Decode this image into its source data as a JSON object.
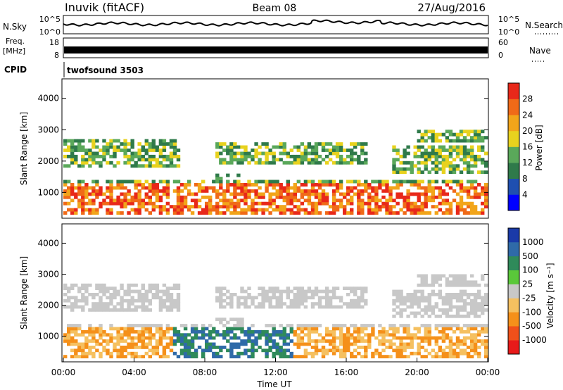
{
  "header": {
    "station": "Inuvik (fitACF)",
    "beam": "Beam 08",
    "date": "27/Aug/2016"
  },
  "top_panels": {
    "nsky_label": "N.Sky",
    "nsky_ticks": [
      "10^5",
      "10^0"
    ],
    "nsearch_label": "N.Search",
    "nsearch_ticks": [
      "10^5",
      "10^0"
    ],
    "freq_label": "Freq.",
    "freq_unit": "[MHz]",
    "freq_ticks": [
      "18",
      "8"
    ],
    "nave_label": "Nave",
    "nave_ticks": [
      "60",
      "0"
    ],
    "cpid_label": "CPID",
    "cpid_value": "twofsound 3503"
  },
  "chart_data": [
    {
      "type": "heatmap",
      "name": "power",
      "ylabel": "Slant Range [km]",
      "ylim": [
        200,
        4600
      ],
      "y_ticks": [
        1000,
        2000,
        3000,
        4000
      ],
      "xlim": [
        0,
        24
      ],
      "colorbar": {
        "label": "Power [dB]",
        "ticks": [
          "28",
          "24",
          "20",
          "16",
          "12",
          "8",
          "4"
        ],
        "colors": [
          "#0000ff",
          "#1f4fb0",
          "#2f7a4a",
          "#5aa85a",
          "#e8d21e",
          "#f2a51a",
          "#f06a18",
          "#e8281a"
        ]
      }
    },
    {
      "type": "heatmap",
      "name": "velocity",
      "ylabel": "Slant Range [km]",
      "ylim": [
        200,
        4600
      ],
      "y_ticks": [
        1000,
        2000,
        3000,
        4000
      ],
      "xlim": [
        0,
        24
      ],
      "x_ticks": [
        "00:00",
        "04:00",
        "08:00",
        "12:00",
        "16:00",
        "20:00",
        "00:00"
      ],
      "xlabel": "Time UT",
      "colorbar": {
        "label": "Velocity [m s⁻¹]",
        "ticks": [
          "1000",
          "500",
          "100",
          "25",
          "-25",
          "-100",
          "-500",
          "-1000"
        ],
        "colors": [
          "#e81a1a",
          "#f0501a",
          "#f5901a",
          "#f5c060",
          "#c8c8c8",
          "#5ac83a",
          "#2f8a5a",
          "#2f6aa8",
          "#1a3aa8"
        ]
      }
    }
  ]
}
